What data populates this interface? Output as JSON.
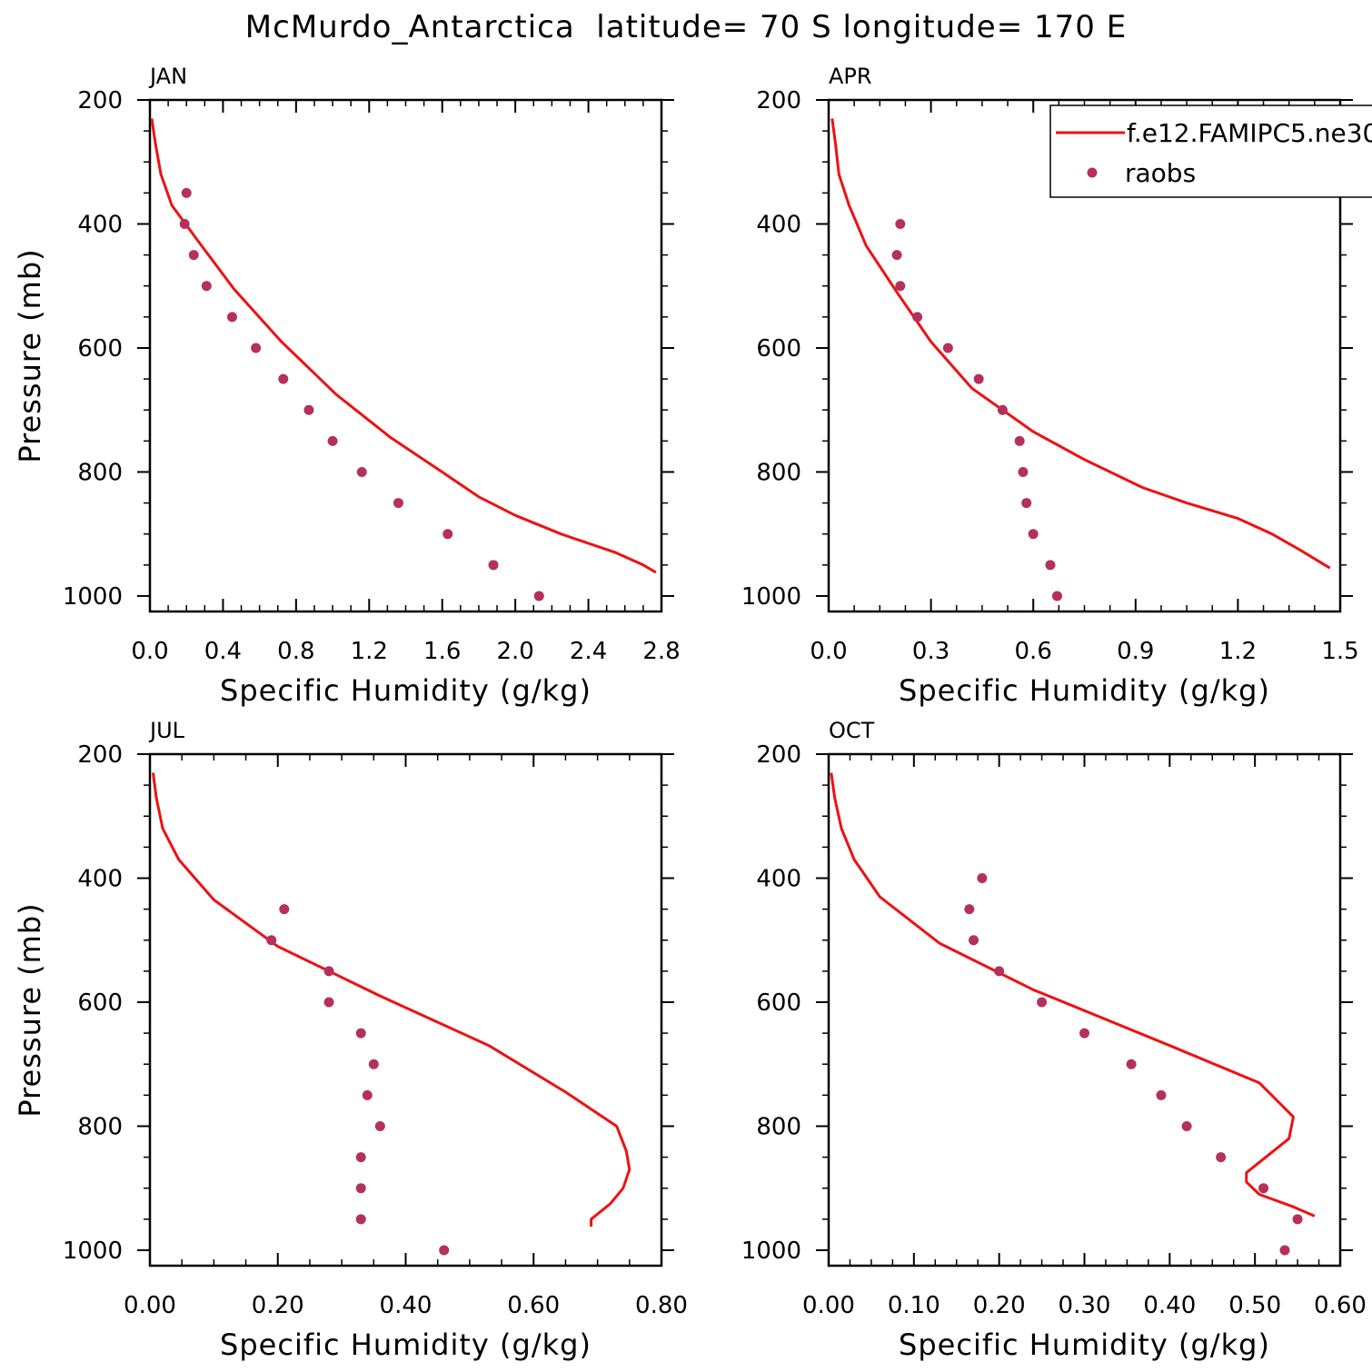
{
  "title": "McMurdo_Antarctica  latitude= 70 S longitude= 170 E",
  "legend": {
    "model_label": "f.e12.FAMIPC5.ne30",
    "obs_label": "raobs",
    "line_color": "#ee1111",
    "marker_color": "#b5305e"
  },
  "chart_data": [
    {
      "type": "line",
      "panel": "JAN",
      "title": "JAN",
      "xlabel": "Specific Humidity (g/kg)",
      "ylabel": "Pressure (mb)",
      "xlim": [
        0,
        2.8
      ],
      "ylim": [
        200,
        1025
      ],
      "y_inverted": true,
      "xticks": [
        0.0,
        0.4,
        0.8,
        1.2,
        1.6,
        2.0,
        2.4,
        2.8
      ],
      "xtick_labels": [
        "0.0",
        "0.4",
        "0.8",
        "1.2",
        "1.6",
        "2.0",
        "2.4",
        "2.8"
      ],
      "yticks": [
        200,
        400,
        600,
        800,
        1000
      ],
      "ytick_labels": [
        "200",
        "400",
        "600",
        "800",
        "1000"
      ],
      "series": [
        {
          "name": "f.e12.FAMIPC5.ne30",
          "kind": "line",
          "x": [
            0.01,
            0.03,
            0.06,
            0.12,
            0.27,
            0.46,
            0.72,
            1.02,
            1.32,
            1.6,
            1.8,
            2.0,
            2.25,
            2.55,
            2.7,
            2.77
          ],
          "y": [
            230,
            270,
            320,
            370,
            430,
            505,
            590,
            675,
            745,
            800,
            840,
            870,
            900,
            930,
            950,
            962
          ]
        },
        {
          "name": "raobs",
          "kind": "scatter",
          "x": [
            0.2,
            0.19,
            0.24,
            0.31,
            0.45,
            0.58,
            0.73,
            0.87,
            1.0,
            1.16,
            1.36,
            1.63,
            1.88,
            2.13
          ],
          "y": [
            350,
            400,
            450,
            500,
            550,
            600,
            650,
            700,
            750,
            800,
            850,
            900,
            950,
            1000
          ]
        }
      ]
    },
    {
      "type": "line",
      "panel": "APR",
      "title": "APR",
      "xlabel": "Specific Humidity (g/kg)",
      "ylabel": "",
      "xlim": [
        0,
        1.5
      ],
      "ylim": [
        200,
        1025
      ],
      "y_inverted": true,
      "xticks": [
        0.0,
        0.3,
        0.6,
        0.9,
        1.2,
        1.5
      ],
      "xtick_labels": [
        "0.0",
        "0.3",
        "0.6",
        "0.9",
        "1.2",
        "1.5"
      ],
      "yticks": [
        200,
        400,
        600,
        800,
        1000
      ],
      "ytick_labels": [
        "200",
        "400",
        "600",
        "800",
        "1000"
      ],
      "series": [
        {
          "name": "f.e12.FAMIPC5.ne30",
          "kind": "line",
          "x": [
            0.01,
            0.02,
            0.03,
            0.06,
            0.11,
            0.2,
            0.3,
            0.42,
            0.6,
            0.75,
            0.92,
            1.05,
            1.2,
            1.3,
            1.38,
            1.47
          ],
          "y": [
            230,
            270,
            320,
            370,
            435,
            510,
            590,
            665,
            735,
            780,
            825,
            850,
            875,
            900,
            925,
            955
          ]
        },
        {
          "name": "raobs",
          "kind": "scatter",
          "x": [
            0.21,
            0.2,
            0.21,
            0.26,
            0.35,
            0.44,
            0.51,
            0.56,
            0.57,
            0.58,
            0.6,
            0.65,
            0.67
          ],
          "y": [
            400,
            450,
            500,
            550,
            600,
            650,
            700,
            750,
            800,
            850,
            900,
            950,
            1000
          ]
        }
      ]
    },
    {
      "type": "line",
      "panel": "JUL",
      "title": "JUL",
      "xlabel": "Specific Humidity (g/kg)",
      "ylabel": "Pressure (mb)",
      "xlim": [
        0,
        0.8
      ],
      "ylim": [
        200,
        1025
      ],
      "y_inverted": true,
      "xticks": [
        0.0,
        0.2,
        0.4,
        0.6,
        0.8
      ],
      "xtick_labels": [
        "0.00",
        "0.20",
        "0.40",
        "0.60",
        "0.80"
      ],
      "yticks": [
        200,
        400,
        600,
        800,
        1000
      ],
      "ytick_labels": [
        "200",
        "400",
        "600",
        "800",
        "1000"
      ],
      "series": [
        {
          "name": "f.e12.FAMIPC5.ne30",
          "kind": "line",
          "x": [
            0.005,
            0.01,
            0.02,
            0.045,
            0.1,
            0.2,
            0.36,
            0.53,
            0.65,
            0.73,
            0.745,
            0.75,
            0.74,
            0.72,
            0.69,
            0.69
          ],
          "y": [
            230,
            270,
            320,
            370,
            435,
            510,
            590,
            670,
            745,
            800,
            840,
            870,
            900,
            925,
            950,
            962
          ]
        },
        {
          "name": "raobs",
          "kind": "scatter",
          "x": [
            0.21,
            0.19,
            0.28,
            0.28,
            0.33,
            0.35,
            0.34,
            0.36,
            0.33,
            0.33,
            0.33,
            0.46
          ],
          "y": [
            450,
            500,
            550,
            600,
            650,
            700,
            750,
            800,
            850,
            900,
            950,
            1000
          ]
        }
      ]
    },
    {
      "type": "line",
      "panel": "OCT",
      "title": "OCT",
      "xlabel": "Specific Humidity (g/kg)",
      "ylabel": "",
      "xlim": [
        0,
        0.6
      ],
      "ylim": [
        200,
        1025
      ],
      "y_inverted": true,
      "xticks": [
        0.0,
        0.1,
        0.2,
        0.3,
        0.4,
        0.5,
        0.6
      ],
      "xtick_labels": [
        "0.00",
        "0.10",
        "0.20",
        "0.30",
        "0.40",
        "0.50",
        "0.60"
      ],
      "yticks": [
        200,
        400,
        600,
        800,
        1000
      ],
      "ytick_labels": [
        "200",
        "400",
        "600",
        "800",
        "1000"
      ],
      "series": [
        {
          "name": "f.e12.FAMIPC5.ne30",
          "kind": "line",
          "x": [
            0.003,
            0.007,
            0.015,
            0.03,
            0.06,
            0.13,
            0.24,
            0.4,
            0.505,
            0.545,
            0.54,
            0.49,
            0.49,
            0.505,
            0.545,
            0.57
          ],
          "y": [
            230,
            270,
            320,
            370,
            430,
            505,
            580,
            670,
            730,
            785,
            820,
            875,
            890,
            910,
            930,
            945
          ]
        },
        {
          "name": "raobs",
          "kind": "scatter",
          "x": [
            0.18,
            0.165,
            0.17,
            0.2,
            0.25,
            0.3,
            0.355,
            0.39,
            0.42,
            0.46,
            0.51,
            0.55,
            0.535
          ],
          "y": [
            400,
            450,
            500,
            550,
            600,
            650,
            700,
            750,
            800,
            850,
            900,
            950,
            1000
          ]
        }
      ]
    }
  ]
}
